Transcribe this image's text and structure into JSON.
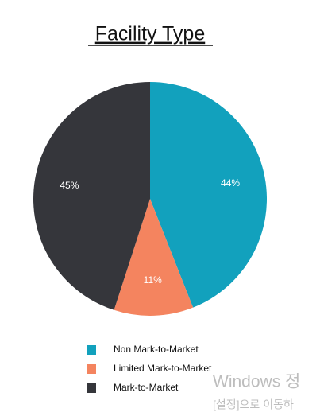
{
  "chart_data": {
    "type": "pie",
    "title": "Facility Type",
    "categories": [
      "Non Mark-to-Market",
      "Limited Mark-to-Market",
      "Mark-to-Market"
    ],
    "values": [
      44,
      11,
      45
    ],
    "value_labels": [
      "44%",
      "11%",
      "45%"
    ],
    "colors": [
      "#12a1bd",
      "#f4845f",
      "#35363b"
    ]
  },
  "watermark": {
    "line1": "Windows 정",
    "line2": "[설정]으로 이동하"
  }
}
